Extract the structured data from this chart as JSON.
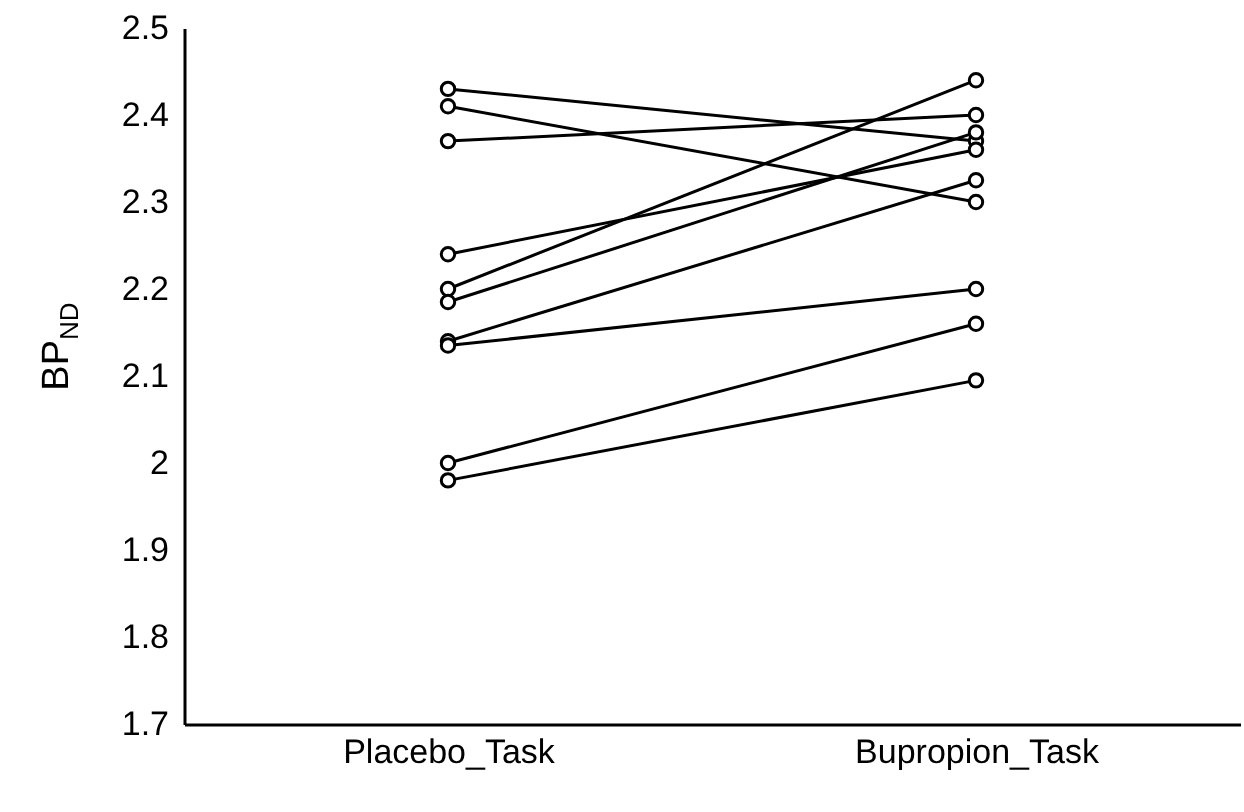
{
  "chart_data": {
    "type": "line",
    "ylabel": "BP$_{ND}$",
    "categories": [
      "Placebo_Task",
      "Bupropion_Task"
    ],
    "ylim": [
      1.7,
      2.5
    ],
    "yticks": [
      1.7,
      1.8,
      1.9,
      2,
      2.1,
      2.2,
      2.3,
      2.4,
      2.5
    ],
    "grid": false,
    "marker": "circle",
    "line_style": "solid",
    "series": [
      {
        "color": "#000000",
        "values": [
          2.43,
          2.37
        ]
      },
      {
        "color": "#000000",
        "values": [
          2.41,
          2.3
        ]
      },
      {
        "color": "#000000",
        "values": [
          2.37,
          2.4
        ]
      },
      {
        "color": "#000000",
        "values": [
          2.24,
          2.36
        ]
      },
      {
        "color": "#000000",
        "values": [
          2.2,
          2.44
        ]
      },
      {
        "color": "#000000",
        "values": [
          2.185,
          2.38
        ]
      },
      {
        "color": "#000000",
        "values": [
          2.14,
          2.325
        ]
      },
      {
        "color": "#000000",
        "values": [
          2.135,
          2.2
        ]
      },
      {
        "color": "#000000",
        "values": [
          2.0,
          2.16
        ]
      },
      {
        "color": "#000000",
        "values": [
          1.98,
          2.095
        ]
      }
    ]
  }
}
